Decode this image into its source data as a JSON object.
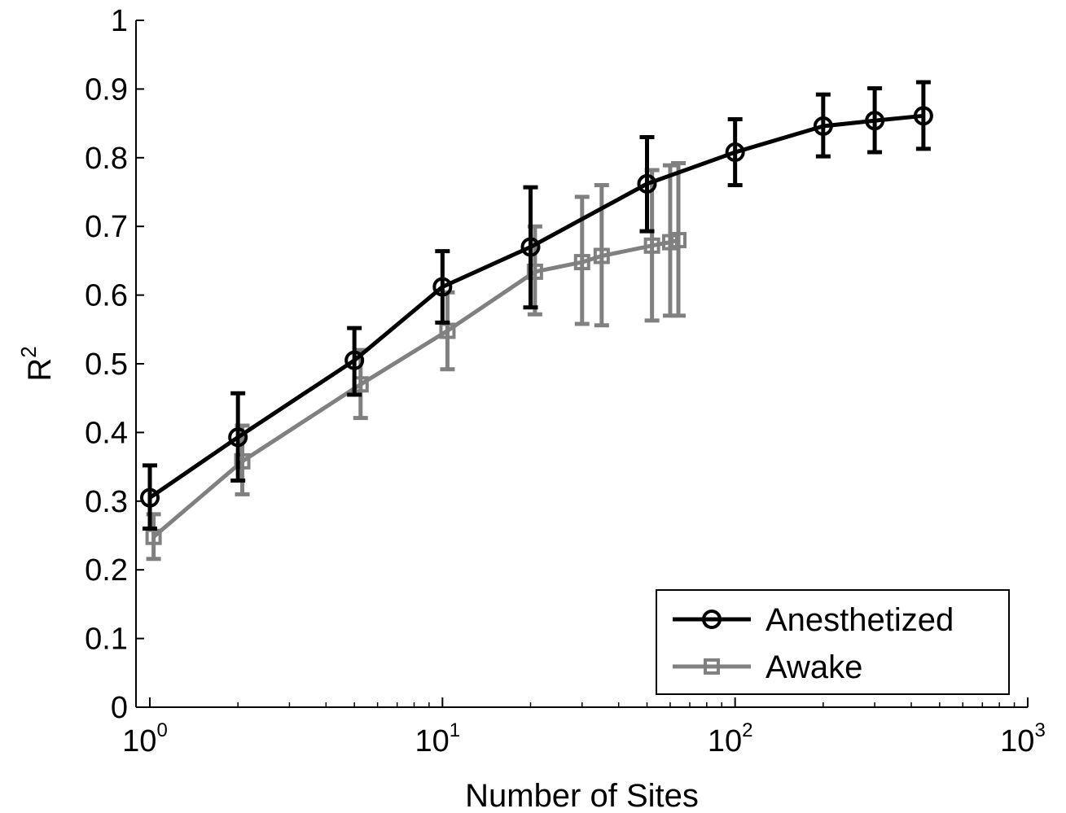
{
  "chart_data": {
    "type": "line",
    "xscale": "log",
    "xlim": [
      1,
      1000
    ],
    "ylim": [
      0,
      1
    ],
    "xlabel": "Number of Sites",
    "ylabel": {
      "base": "R",
      "sup": "2"
    },
    "x_ticks": [
      {
        "value": 1,
        "base": "10",
        "exp": "0"
      },
      {
        "value": 10,
        "base": "10",
        "exp": "1"
      },
      {
        "value": 100,
        "base": "10",
        "exp": "2"
      },
      {
        "value": 1000,
        "base": "10",
        "exp": "3"
      }
    ],
    "y_ticks": [
      {
        "value": 0,
        "label": "0"
      },
      {
        "value": 0.1,
        "label": "0.1"
      },
      {
        "value": 0.2,
        "label": "0.2"
      },
      {
        "value": 0.3,
        "label": "0.3"
      },
      {
        "value": 0.4,
        "label": "0.4"
      },
      {
        "value": 0.5,
        "label": "0.5"
      },
      {
        "value": 0.6,
        "label": "0.6"
      },
      {
        "value": 0.7,
        "label": "0.7"
      },
      {
        "value": 0.8,
        "label": "0.8"
      },
      {
        "value": 0.9,
        "label": "0.9"
      },
      {
        "value": 1,
        "label": "1"
      }
    ],
    "grid": false,
    "legend_position": "bottom-right",
    "series": [
      {
        "name": "Anesthetized",
        "color": "#000000",
        "marker": "circle",
        "x": [
          1,
          2,
          5,
          10,
          20,
          50,
          100,
          200,
          300,
          440
        ],
        "y": [
          0.305,
          0.393,
          0.505,
          0.612,
          0.67,
          0.762,
          0.808,
          0.846,
          0.854,
          0.861
        ],
        "err_low": [
          0.26,
          0.33,
          0.455,
          0.56,
          0.582,
          0.693,
          0.76,
          0.802,
          0.808,
          0.813
        ],
        "err_high": [
          0.352,
          0.457,
          0.552,
          0.664,
          0.757,
          0.83,
          0.856,
          0.892,
          0.901,
          0.91
        ]
      },
      {
        "name": "Awake",
        "color": "#808080",
        "marker": "square",
        "x": [
          1.03,
          2.07,
          5.25,
          10.4,
          20.7,
          30,
          35,
          52,
          60,
          64
        ],
        "y": [
          0.248,
          0.358,
          0.47,
          0.548,
          0.634,
          0.648,
          0.657,
          0.672,
          0.677,
          0.68
        ],
        "err_low": [
          0.216,
          0.31,
          0.421,
          0.492,
          0.572,
          0.558,
          0.556,
          0.563,
          0.57,
          0.57
        ],
        "err_high": [
          0.281,
          0.41,
          0.52,
          0.604,
          0.7,
          0.743,
          0.76,
          0.782,
          0.789,
          0.792
        ]
      }
    ]
  }
}
